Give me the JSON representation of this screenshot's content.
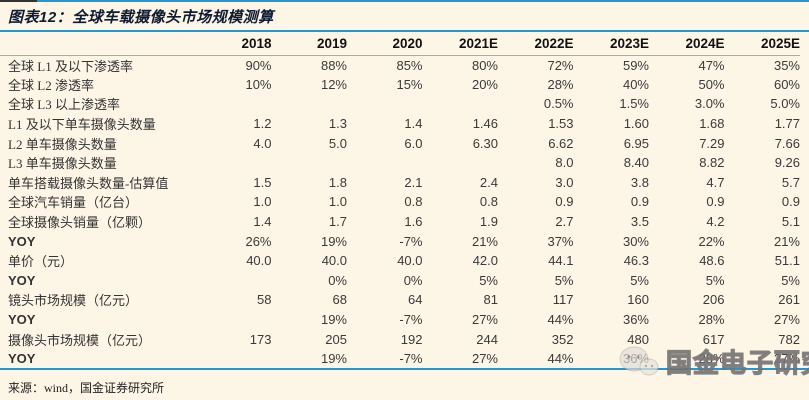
{
  "figure": {
    "title": "图表12：全球车载摄像头市场规模测算",
    "source": "来源：wind，国金证券研究所",
    "watermark_text": "国金电子研究",
    "watermark_icon": "chat-bubbles-icon"
  },
  "colors": {
    "background": "#fdf5e6",
    "accent_blue": "#2397d3",
    "header_rule_gray": "#a9a9a9",
    "title_text": "#0d1b33",
    "body_text": "#3a3a3a",
    "top_left_dark_segment": "#333333"
  },
  "chart_data": {
    "type": "table",
    "title": "图表12：全球车载摄像头市场规模测算",
    "columns": [
      "",
      "2018",
      "2019",
      "2020",
      "2021E",
      "2022E",
      "2023E",
      "2024E",
      "2025E"
    ],
    "rows": [
      {
        "label": "全球 L1 及以下渗透率",
        "values": [
          "90%",
          "88%",
          "85%",
          "80%",
          "72%",
          "59%",
          "47%",
          "35%"
        ]
      },
      {
        "label": "全球 L2 渗透率",
        "values": [
          "10%",
          "12%",
          "15%",
          "20%",
          "28%",
          "40%",
          "50%",
          "60%"
        ]
      },
      {
        "label": "全球 L3 以上渗透率",
        "values": [
          "",
          "",
          "",
          "",
          "0.5%",
          "1.5%",
          "3.0%",
          "5.0%"
        ]
      },
      {
        "label": "L1 及以下单车摄像头数量",
        "values": [
          "1.2",
          "1.3",
          "1.4",
          "1.46",
          "1.53",
          "1.60",
          "1.68",
          "1.77"
        ]
      },
      {
        "label": "L2 单车摄像头数量",
        "values": [
          "4.0",
          "5.0",
          "6.0",
          "6.30",
          "6.62",
          "6.95",
          "7.29",
          "7.66"
        ]
      },
      {
        "label": "L3 单车摄像头数量",
        "values": [
          "",
          "",
          "",
          "",
          "8.0",
          "8.40",
          "8.82",
          "9.26"
        ]
      },
      {
        "label": "单车搭载摄像头数量-估算值",
        "values": [
          "1.5",
          "1.8",
          "2.1",
          "2.4",
          "3.0",
          "3.8",
          "4.7",
          "5.7"
        ]
      },
      {
        "label": "全球汽车销量（亿台）",
        "values": [
          "1.0",
          "1.0",
          "0.8",
          "0.8",
          "0.9",
          "0.9",
          "0.9",
          "0.9"
        ]
      },
      {
        "label": "全球摄像头销量（亿颗）",
        "values": [
          "1.4",
          "1.7",
          "1.6",
          "1.9",
          "2.7",
          "3.5",
          "4.2",
          "5.1"
        ]
      },
      {
        "label": "YOY",
        "values": [
          "26%",
          "19%",
          "-7%",
          "21%",
          "37%",
          "30%",
          "22%",
          "21%"
        ]
      },
      {
        "label": "单价（元）",
        "values": [
          "40.0",
          "40.0",
          "40.0",
          "42.0",
          "44.1",
          "46.3",
          "48.6",
          "51.1"
        ]
      },
      {
        "label": "YOY",
        "values": [
          "",
          "0%",
          "0%",
          "5%",
          "5%",
          "5%",
          "5%",
          "5%"
        ]
      },
      {
        "label": "镜头市场规模（亿元）",
        "values": [
          "58",
          "68",
          "64",
          "81",
          "117",
          "160",
          "206",
          "261"
        ]
      },
      {
        "label": "YOY",
        "values": [
          "",
          "19%",
          "-7%",
          "27%",
          "44%",
          "36%",
          "28%",
          "27%"
        ]
      },
      {
        "label": "摄像头市场规模（亿元）",
        "values": [
          "173",
          "205",
          "192",
          "244",
          "352",
          "480",
          "617",
          "782"
        ]
      },
      {
        "label": "YOY",
        "values": [
          "",
          "19%",
          "-7%",
          "27%",
          "44%",
          "36%",
          "28%",
          "27%"
        ]
      }
    ]
  }
}
